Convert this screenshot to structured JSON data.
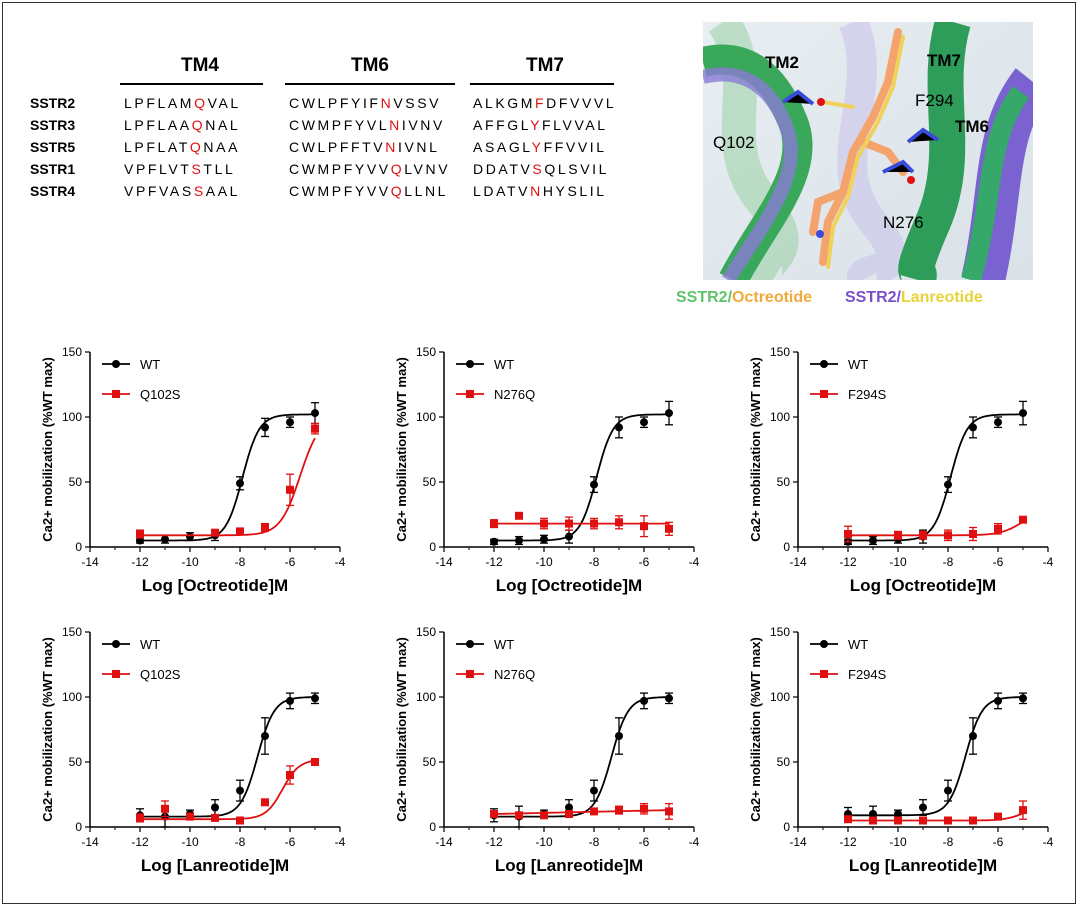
{
  "alignment": {
    "headers": [
      "TM4",
      "TM6",
      "TM7"
    ],
    "rows": [
      {
        "label": "SSTR2",
        "segments": [
          [
            "LPFLAM",
            "Q",
            "VAL"
          ],
          [
            "CWLPFYIF",
            "N",
            "VSSV"
          ],
          [
            "ALKGM",
            "F",
            "DFVVVL"
          ]
        ]
      },
      {
        "label": "SSTR3",
        "segments": [
          [
            "LPFLAA",
            "Q",
            "NAL"
          ],
          [
            "CWMPFYVL",
            "N",
            "IVNV"
          ],
          [
            "AFFGL",
            "Y",
            "FLVVAL"
          ]
        ]
      },
      {
        "label": "SSTR5",
        "segments": [
          [
            "LPFLAT",
            "Q",
            "NAA"
          ],
          [
            "CWLPFFTV",
            "N",
            "IVNL"
          ],
          [
            "ASAGL",
            "Y",
            "FFVVIL"
          ]
        ]
      },
      {
        "label": "SSTR1",
        "segments": [
          [
            "VPFLVT",
            "S",
            "TLL"
          ],
          [
            "CWMPFYVV",
            "Q",
            "LVNV"
          ],
          [
            "DDATV",
            "S",
            "QLSVIL"
          ]
        ]
      },
      {
        "label": "SSTR4",
        "segments": [
          [
            "VPFVAS",
            "S",
            "AAL"
          ],
          [
            "CWMPFYVV",
            "Q",
            "LLNL"
          ],
          [
            "LDATV",
            "N",
            "HYSLIL"
          ]
        ]
      }
    ]
  },
  "structure": {
    "labels": [
      "TM2",
      "TM7",
      "F294",
      "TM6",
      "Q102",
      "N276"
    ],
    "legend": {
      "left": {
        "a": "SSTR2",
        "sep": "/",
        "b": "Octreotide"
      },
      "right": {
        "a": "SSTR2",
        "sep": "/",
        "b": "Lanreotide"
      }
    },
    "colors": {
      "green": "#5cc46a",
      "orange": "#f2a93b",
      "purple": "#7a4fc9",
      "yellow": "#e7d23a"
    }
  },
  "chart_data": [
    {
      "type": "line",
      "xlabel": "Log [Octreotide]M",
      "ylabel": "Ca2+ mobilization (%WT max)",
      "xlim": [
        -14,
        -4
      ],
      "ylim": [
        0,
        150
      ],
      "xticks": [
        -14,
        -12,
        -10,
        -8,
        -6,
        -4
      ],
      "yticks": [
        0,
        50,
        100,
        150
      ],
      "series": [
        {
          "name": "WT",
          "color": "#000000",
          "x": [
            -12,
            -11,
            -10,
            -9,
            -8,
            -7,
            -6,
            -5
          ],
          "y": [
            5,
            6,
            8,
            9,
            49,
            92,
            96,
            103
          ],
          "err": [
            2,
            3,
            3,
            4,
            5,
            7,
            4,
            8
          ],
          "ec50": -7.9,
          "hill": 1.3,
          "bottom": 5,
          "top": 102
        },
        {
          "name": "Q102S",
          "color": "#e01010",
          "x": [
            -12,
            -9,
            -8,
            -7,
            -6,
            -5
          ],
          "y": [
            10,
            11,
            12,
            15,
            44,
            91
          ],
          "err": [
            3,
            2,
            2,
            3,
            12,
            4
          ],
          "ec50": -5.6,
          "hill": 1.1,
          "bottom": 9,
          "top": 100
        }
      ]
    },
    {
      "type": "line",
      "xlabel": "Log [Octreotide]M",
      "ylabel": "Ca2+ mobilization (%WT max)",
      "xlim": [
        -14,
        -4
      ],
      "ylim": [
        0,
        150
      ],
      "xticks": [
        -14,
        -12,
        -10,
        -8,
        -6,
        -4
      ],
      "yticks": [
        0,
        50,
        100,
        150
      ],
      "series": [
        {
          "name": "WT",
          "color": "#000000",
          "x": [
            -12,
            -11,
            -10,
            -9,
            -8,
            -7,
            -6,
            -5
          ],
          "y": [
            4,
            5,
            6,
            8,
            48,
            92,
            96,
            103
          ],
          "err": [
            2,
            3,
            3,
            5,
            6,
            8,
            4,
            9
          ],
          "ec50": -7.9,
          "hill": 1.3,
          "bottom": 5,
          "top": 102
        },
        {
          "name": "N276Q",
          "color": "#e01010",
          "x": [
            -12,
            -11,
            -10,
            -9,
            -8,
            -7,
            -6,
            -5
          ],
          "y": [
            18,
            24,
            18,
            18,
            18,
            19,
            16,
            14
          ],
          "err": [
            3,
            2,
            4,
            5,
            4,
            5,
            8,
            5
          ],
          "flat": 18
        }
      ]
    },
    {
      "type": "line",
      "xlabel": "Log [Octreotide]M",
      "ylabel": "Ca2+ mobilization (%WT max)",
      "xlim": [
        -14,
        -4
      ],
      "ylim": [
        0,
        150
      ],
      "xticks": [
        -14,
        -12,
        -10,
        -8,
        -6,
        -4
      ],
      "yticks": [
        0,
        50,
        100,
        150
      ],
      "series": [
        {
          "name": "WT",
          "color": "#000000",
          "x": [
            -12,
            -11,
            -10,
            -9,
            -8,
            -7,
            -6,
            -5
          ],
          "y": [
            4,
            5,
            6,
            8,
            48,
            92,
            96,
            103
          ],
          "err": [
            2,
            3,
            3,
            5,
            6,
            8,
            4,
            9
          ],
          "ec50": -7.9,
          "hill": 1.3,
          "bottom": 5,
          "top": 102
        },
        {
          "name": "F294S",
          "color": "#e01010",
          "x": [
            -12,
            -10,
            -9,
            -8,
            -7,
            -6,
            -5
          ],
          "y": [
            10,
            9,
            9,
            9,
            10,
            14,
            21
          ],
          "err": [
            6,
            3,
            3,
            4,
            5,
            4,
            2
          ],
          "ec50": -5.0,
          "hill": 1.0,
          "bottom": 9,
          "top": 30
        }
      ]
    },
    {
      "type": "line",
      "xlabel": "Log [Lanreotide]M",
      "ylabel": "Ca2+ mobilization (%WT max)",
      "xlim": [
        -14,
        -4
      ],
      "ylim": [
        0,
        150
      ],
      "xticks": [
        -14,
        -12,
        -10,
        -8,
        -6,
        -4
      ],
      "yticks": [
        0,
        50,
        100,
        150
      ],
      "series": [
        {
          "name": "WT",
          "color": "#000000",
          "x": [
            -12,
            -11,
            -10,
            -9,
            -8,
            -7,
            -6,
            -5
          ],
          "y": [
            9,
            8,
            10,
            15,
            28,
            70,
            97,
            99
          ],
          "err": [
            5,
            8,
            3,
            6,
            8,
            14,
            6,
            4
          ],
          "ec50": -7.3,
          "hill": 1.3,
          "bottom": 8,
          "top": 100
        },
        {
          "name": "Q102S",
          "color": "#e01010",
          "x": [
            -12,
            -11,
            -10,
            -9,
            -8,
            -7,
            -6,
            -5
          ],
          "y": [
            7,
            14,
            8,
            7,
            5,
            19,
            40,
            50
          ],
          "err": [
            3,
            6,
            2,
            2,
            2,
            2,
            7,
            2
          ],
          "ec50": -6.3,
          "hill": 1.3,
          "bottom": 6,
          "top": 52
        }
      ]
    },
    {
      "type": "line",
      "xlabel": "Log [Lanreotide]M",
      "ylabel": "Ca2+ mobilization (%WT max)",
      "xlim": [
        -14,
        -4
      ],
      "ylim": [
        0,
        150
      ],
      "xticks": [
        -14,
        -12,
        -10,
        -8,
        -6,
        -4
      ],
      "yticks": [
        0,
        50,
        100,
        150
      ],
      "series": [
        {
          "name": "WT",
          "color": "#000000",
          "x": [
            -12,
            -11,
            -10,
            -9,
            -8,
            -7,
            -6,
            -5
          ],
          "y": [
            9,
            8,
            10,
            15,
            28,
            70,
            97,
            99
          ],
          "err": [
            5,
            8,
            3,
            6,
            8,
            14,
            6,
            4
          ],
          "ec50": -7.3,
          "hill": 1.3,
          "bottom": 8,
          "top": 100
        },
        {
          "name": "N276Q",
          "color": "#e01010",
          "x": [
            -12,
            -11,
            -10,
            -9,
            -8,
            -7,
            -6,
            -5
          ],
          "y": [
            10,
            9,
            9,
            10,
            12,
            13,
            14,
            12
          ],
          "err": [
            2,
            2,
            2,
            2,
            2,
            3,
            4,
            6
          ],
          "flat": 10,
          "flatEnd": 13
        }
      ]
    },
    {
      "type": "line",
      "xlabel": "Log [Lanreotide]M",
      "ylabel": "Ca2+ mobilization (%WT max)",
      "xlim": [
        -14,
        -4
      ],
      "ylim": [
        0,
        150
      ],
      "xticks": [
        -14,
        -12,
        -10,
        -8,
        -6,
        -4
      ],
      "yticks": [
        0,
        50,
        100,
        150
      ],
      "series": [
        {
          "name": "WT",
          "color": "#000000",
          "x": [
            -12,
            -11,
            -10,
            -9,
            -8,
            -7,
            -6,
            -5
          ],
          "y": [
            10,
            10,
            10,
            15,
            28,
            70,
            97,
            99
          ],
          "err": [
            5,
            6,
            3,
            6,
            8,
            14,
            6,
            4
          ],
          "ec50": -7.3,
          "hill": 1.3,
          "bottom": 9,
          "top": 100
        },
        {
          "name": "F294S",
          "color": "#e01010",
          "x": [
            -12,
            -11,
            -10,
            -9,
            -8,
            -7,
            -6,
            -5
          ],
          "y": [
            6,
            5,
            5,
            5,
            5,
            5,
            8,
            13
          ],
          "err": [
            2,
            2,
            2,
            2,
            2,
            2,
            2,
            7
          ],
          "ec50": -5.0,
          "hill": 1.2,
          "bottom": 5,
          "top": 16
        }
      ]
    }
  ]
}
